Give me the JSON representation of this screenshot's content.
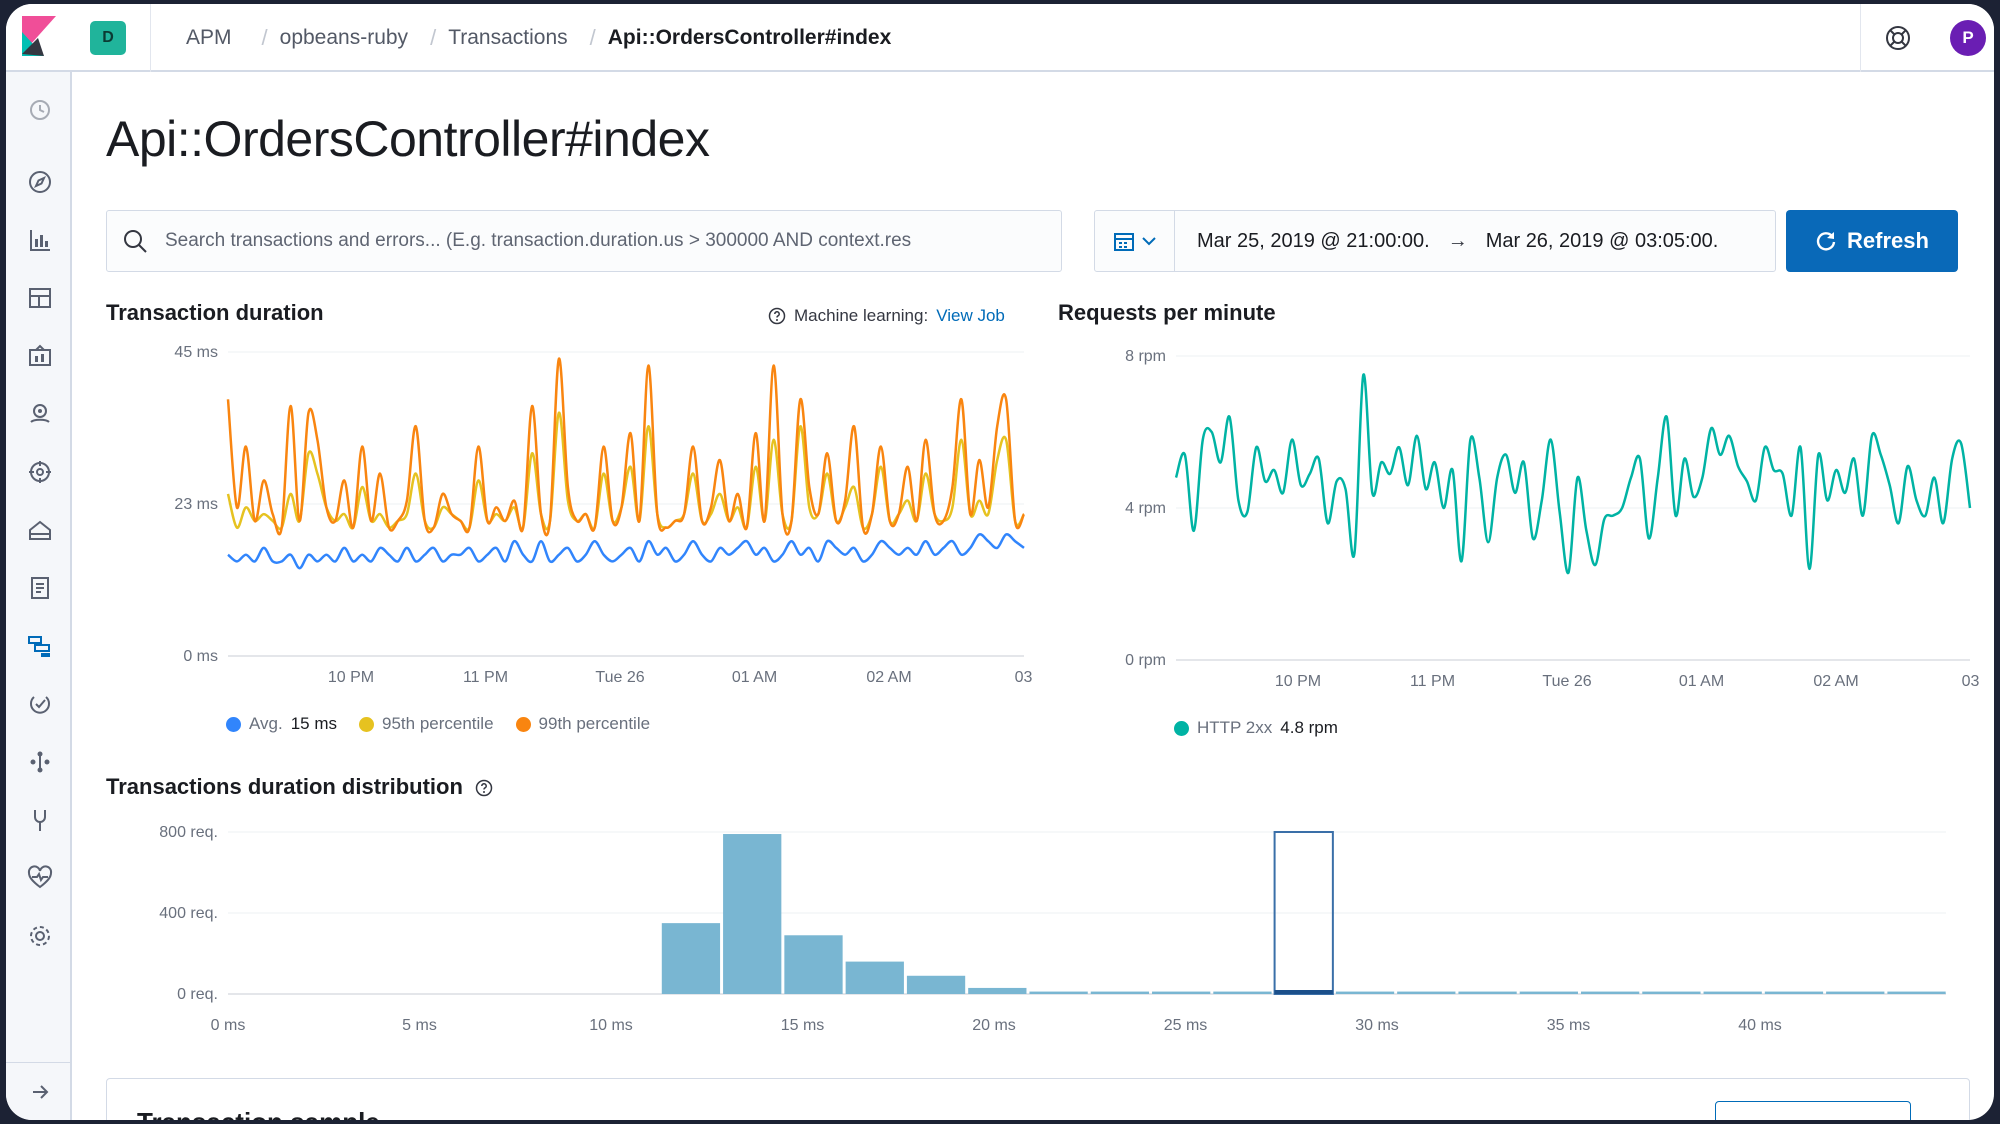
{
  "header": {
    "space_badge": "D",
    "breadcrumbs": [
      "APM",
      "opbeans-ruby",
      "Transactions",
      "Api::OrdersController#index"
    ],
    "avatar_initial": "P"
  },
  "page": {
    "title": "Api::OrdersController#index"
  },
  "search": {
    "placeholder": "Search transactions and errors... (E.g. transaction.duration.us > 300000 AND context.res"
  },
  "date_range": {
    "start": "Mar 25, 2019 @ 21:00:00.",
    "arrow": "→",
    "end": "Mar 26, 2019 @ 03:05:00."
  },
  "refresh_label": "Refresh",
  "transaction_duration": {
    "title": "Transaction duration",
    "ml_label": "Machine learning:",
    "ml_link": "View Job",
    "legend": [
      {
        "name": "Avg.",
        "value": "15 ms",
        "color": "#3185fc"
      },
      {
        "name": "95th percentile",
        "value": "",
        "color": "#e6c220"
      },
      {
        "name": "99th percentile",
        "value": "",
        "color": "#f98510"
      }
    ]
  },
  "requests_per_minute": {
    "title": "Requests per minute",
    "legend": [
      {
        "name": "HTTP 2xx",
        "value": "4.8 rpm",
        "color": "#00b3a4"
      }
    ]
  },
  "distribution": {
    "title": "Transactions duration distribution"
  },
  "transaction_sample": {
    "title": "Transaction sample"
  },
  "chart_data": [
    {
      "type": "line",
      "title": "Transaction duration",
      "ylim": [
        0,
        45
      ],
      "y_ticks": [
        "0 ms",
        "23 ms",
        "45 ms"
      ],
      "x_ticks": [
        "10 PM",
        "11 PM",
        "Tue 26",
        "01 AM",
        "02 AM",
        "03"
      ],
      "series": [
        {
          "name": "Avg.",
          "color": "#3185fc",
          "values": [
            15,
            14,
            15,
            14,
            16,
            14,
            14,
            15,
            13,
            15,
            14,
            15,
            14,
            16,
            14,
            15,
            14,
            16,
            15,
            14,
            16,
            14,
            15,
            16,
            14,
            15,
            15,
            16,
            14,
            15,
            16,
            14,
            17,
            15,
            14,
            17,
            14,
            15,
            16,
            14,
            15,
            17,
            15,
            14,
            15,
            16,
            14,
            17,
            15,
            16,
            14,
            15,
            17,
            15,
            14,
            16,
            15,
            16,
            17,
            15,
            16,
            14,
            15,
            17,
            15,
            16,
            14,
            17,
            16,
            15,
            16,
            14,
            15,
            17,
            16,
            15,
            16,
            15,
            17,
            15,
            16,
            17,
            15,
            16,
            18,
            17,
            16,
            18,
            17,
            16
          ]
        },
        {
          "name": "95th percentile",
          "color": "#e6c220",
          "values": [
            24,
            19,
            22,
            20,
            21,
            20,
            19,
            24,
            20,
            30,
            27,
            22,
            20,
            21,
            19,
            25,
            20,
            21,
            19,
            20,
            21,
            27,
            20,
            19,
            22,
            21,
            20,
            19,
            26,
            20,
            21,
            20,
            22,
            19,
            30,
            21,
            20,
            36,
            23,
            20,
            21,
            19,
            27,
            20,
            22,
            28,
            20,
            34,
            21,
            19,
            20,
            21,
            27,
            20,
            21,
            24,
            20,
            22,
            19,
            28,
            20,
            32,
            21,
            20,
            34,
            22,
            21,
            27,
            20,
            22,
            25,
            19,
            21,
            28,
            20,
            21,
            23,
            20,
            27,
            21,
            20,
            22,
            32,
            21,
            23,
            21,
            29,
            32,
            20,
            21
          ]
        },
        {
          "name": "99th percentile",
          "color": "#f98510",
          "values": [
            38,
            22,
            31,
            20,
            26,
            21,
            19,
            37,
            20,
            36,
            32,
            22,
            20,
            26,
            19,
            31,
            20,
            27,
            19,
            20,
            23,
            34,
            20,
            19,
            24,
            21,
            20,
            19,
            31,
            20,
            22,
            20,
            23,
            19,
            37,
            21,
            20,
            44,
            25,
            20,
            21,
            19,
            31,
            20,
            22,
            33,
            20,
            43,
            21,
            19,
            20,
            21,
            31,
            20,
            22,
            29,
            20,
            24,
            19,
            33,
            20,
            43,
            21,
            20,
            38,
            25,
            21,
            30,
            20,
            23,
            34,
            19,
            21,
            31,
            20,
            21,
            28,
            20,
            32,
            21,
            20,
            25,
            38,
            21,
            29,
            22,
            34,
            38,
            20,
            21
          ]
        }
      ]
    },
    {
      "type": "line",
      "title": "Requests per minute",
      "ylim": [
        0,
        8
      ],
      "y_ticks": [
        "0 rpm",
        "4 rpm",
        "8 rpm"
      ],
      "x_ticks": [
        "10 PM",
        "11 PM",
        "Tue 26",
        "01 AM",
        "02 AM",
        "03"
      ],
      "series": [
        {
          "name": "HTTP 2xx",
          "color": "#00b3a4",
          "values": [
            4.8,
            5.4,
            3.4,
            5.8,
            6.0,
            5.2,
            6.4,
            4.2,
            3.9,
            5.6,
            4.7,
            5.0,
            4.4,
            5.8,
            4.6,
            4.9,
            5.3,
            3.6,
            4.7,
            4.5,
            2.8,
            7.5,
            4.4,
            5.2,
            4.9,
            5.6,
            4.6,
            5.9,
            4.5,
            5.2,
            4.0,
            5.0,
            2.6,
            5.8,
            4.8,
            3.1,
            4.8,
            5.4,
            4.4,
            5.2,
            3.2,
            4.2,
            5.8,
            3.9,
            2.3,
            4.8,
            3.4,
            2.5,
            3.7,
            3.8,
            4.0,
            4.8,
            5.3,
            3.2,
            4.8,
            6.4,
            3.8,
            5.3,
            4.3,
            4.8,
            6.1,
            5.4,
            5.9,
            5.1,
            4.7,
            4.2,
            5.6,
            5.0,
            4.9,
            3.8,
            5.6,
            2.4,
            5.4,
            4.2,
            5.0,
            4.4,
            5.3,
            3.8,
            5.9,
            5.4,
            4.6,
            3.6,
            5.1,
            4.2,
            3.8,
            4.8,
            3.6,
            5.3,
            5.7,
            4.0
          ]
        }
      ]
    },
    {
      "type": "bar",
      "title": "Transactions duration distribution",
      "ylim": [
        0,
        800
      ],
      "y_ticks": [
        "0 req.",
        "400 req.",
        "800 req."
      ],
      "x_ticks": [
        "0 ms",
        "5 ms",
        "10 ms",
        "15 ms",
        "20 ms",
        "25 ms",
        "30 ms",
        "35 ms",
        "40 ms"
      ],
      "bin_width_ms": 1.6,
      "bin_starts_ms": [
        11.3,
        12.9,
        14.5,
        16.1,
        17.7,
        19.3,
        20.9,
        22.5,
        24.1,
        25.7,
        27.3,
        28.9,
        30.5,
        32.1,
        33.7,
        35.3,
        36.9,
        38.5,
        40.1,
        41.7,
        43.3
      ],
      "values": [
        350,
        790,
        290,
        160,
        90,
        30,
        12,
        12,
        12,
        12,
        12,
        12,
        12,
        12,
        12,
        12,
        12,
        12,
        12,
        12,
        12
      ],
      "selected_bin_index": 10,
      "color": "#79b6d2"
    }
  ]
}
